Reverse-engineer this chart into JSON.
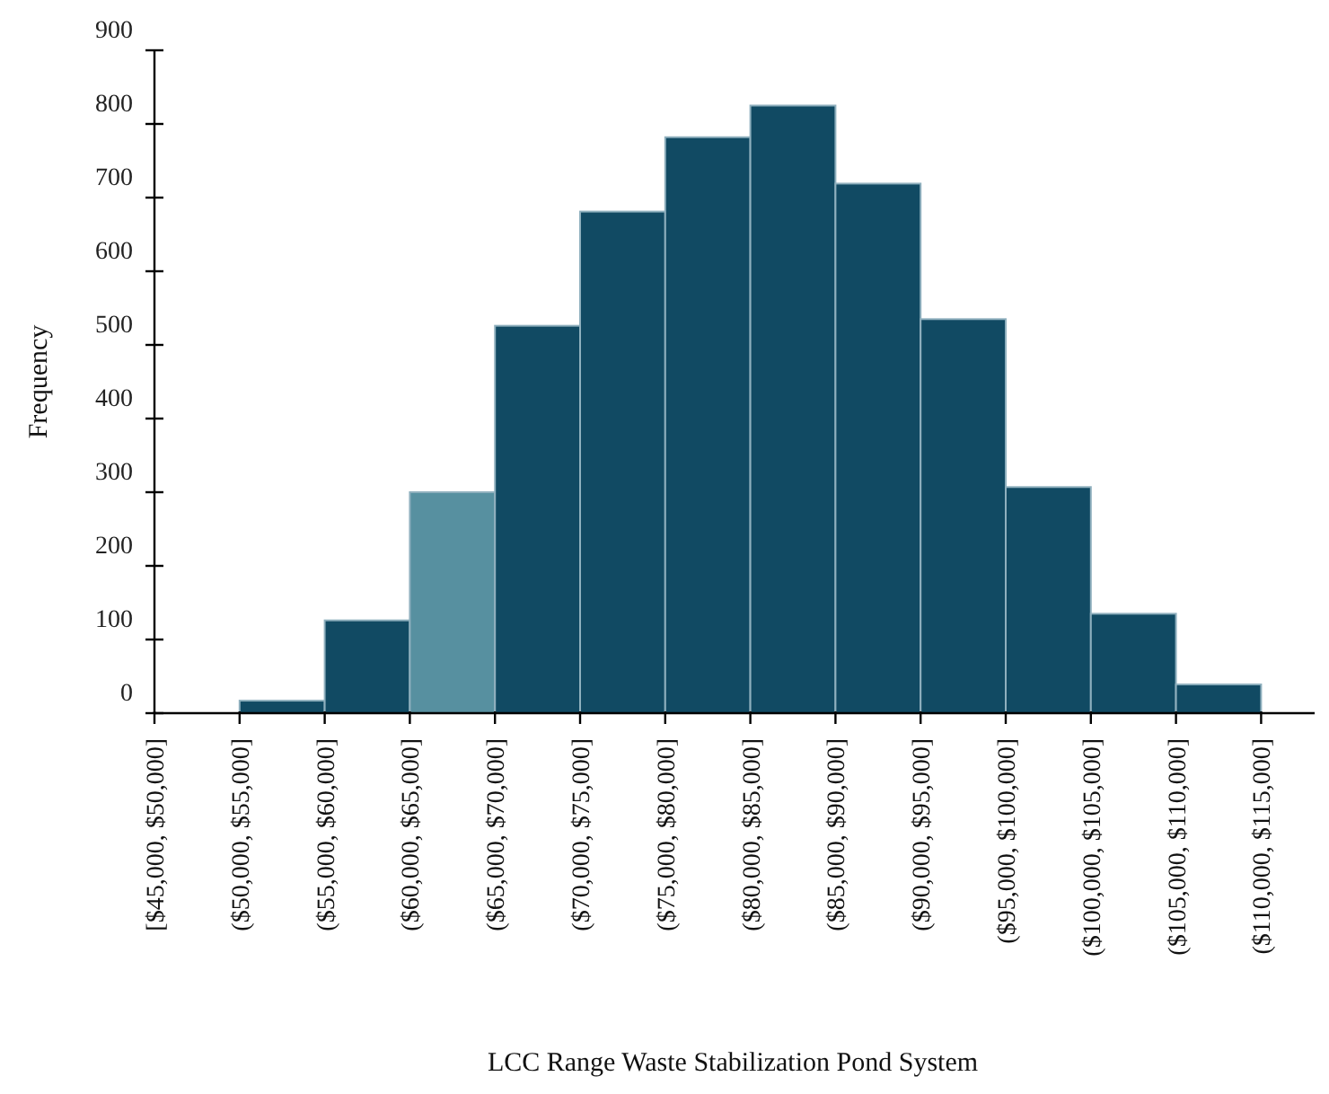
{
  "chart_data": {
    "type": "bar",
    "xlabel": "LCC Range Waste Stabilization Pond System",
    "ylabel": "Frequency",
    "categories": [
      "[$45,000, $50,000]",
      "($50,000, $55,000]",
      "($55,000, $60,000]",
      "($60,000, $65,000]",
      "($65,000, $70,000]",
      "($70,000, $75,000]",
      "($75,000, $80,000]",
      "($80,000, $85,000]",
      "($85,000, $90,000]",
      "($90,000, $95,000]",
      "($95,000, $100,000]",
      "($100,000, $105,000]",
      "($105,000, $110,000]",
      "($110,000, $115,000]"
    ],
    "values": [
      0,
      17,
      126,
      300,
      526,
      681,
      782,
      825,
      719,
      535,
      307,
      135,
      39,
      0
    ],
    "colors": [
      "#114a63",
      "#114a63",
      "#114a63",
      "#5790a0",
      "#114a63",
      "#114a63",
      "#114a63",
      "#114a63",
      "#114a63",
      "#114a63",
      "#114a63",
      "#114a63",
      "#114a63",
      "#114a63"
    ],
    "ylim": [
      0,
      900
    ],
    "yticks": [
      0,
      100,
      200,
      300,
      400,
      500,
      600,
      700,
      800,
      900
    ],
    "grid": false
  }
}
